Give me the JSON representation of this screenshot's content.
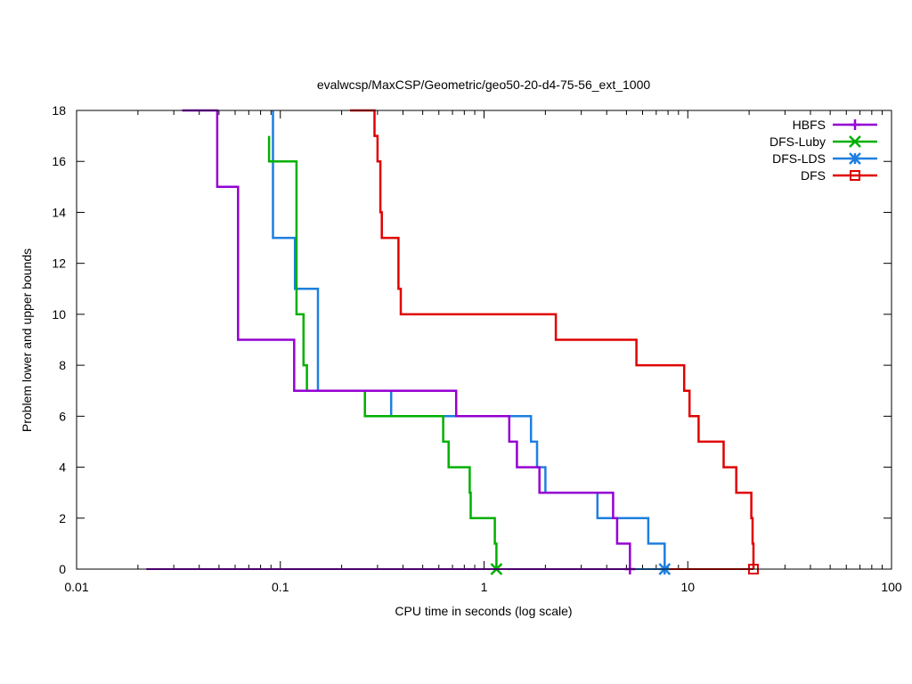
{
  "chart_data": {
    "type": "line",
    "title": "evalwcsp/MaxCSP/Geometric/geo50-20-d4-75-56_ext_1000",
    "xlabel": "CPU time in seconds (log scale)",
    "ylabel": "Problem lower and upper bounds",
    "xscale": "log",
    "xlim": [
      0.01,
      100
    ],
    "ylim": [
      0,
      18
    ],
    "x_ticks": [
      0.01,
      0.1,
      1,
      10,
      100
    ],
    "x_tick_labels": [
      "0.01",
      "0.1",
      "1",
      "10",
      "100"
    ],
    "y_ticks": [
      0,
      2,
      4,
      6,
      8,
      10,
      12,
      14,
      16,
      18
    ],
    "y_tick_labels": [
      "0",
      "2",
      "4",
      "6",
      "8",
      "10",
      "12",
      "14",
      "16",
      "18"
    ],
    "legend_position": "top-right",
    "series": [
      {
        "name": "HBFS",
        "color": "#9400d3",
        "marker": "plus",
        "upper": [
          [
            0.033,
            18
          ],
          [
            0.049,
            18
          ],
          [
            0.049,
            15
          ],
          [
            0.062,
            15
          ],
          [
            0.062,
            9
          ],
          [
            0.117,
            9
          ],
          [
            0.117,
            7
          ],
          [
            0.73,
            7
          ],
          [
            0.73,
            6
          ],
          [
            1.33,
            6
          ],
          [
            1.33,
            5
          ],
          [
            1.45,
            5
          ],
          [
            1.45,
            4
          ],
          [
            1.87,
            4
          ],
          [
            1.87,
            3
          ],
          [
            4.3,
            3
          ],
          [
            4.3,
            2
          ],
          [
            4.5,
            2
          ],
          [
            4.5,
            1
          ],
          [
            5.2,
            1
          ],
          [
            5.2,
            0
          ]
        ],
        "lower": [
          [
            0.022,
            0
          ],
          [
            5.2,
            0
          ]
        ]
      },
      {
        "name": "DFS-Luby",
        "color": "#00b000",
        "marker": "cross",
        "upper": [
          [
            0.088,
            17
          ],
          [
            0.088,
            16
          ],
          [
            0.12,
            16
          ],
          [
            0.12,
            10
          ],
          [
            0.13,
            10
          ],
          [
            0.13,
            8
          ],
          [
            0.135,
            8
          ],
          [
            0.135,
            7
          ],
          [
            0.26,
            7
          ],
          [
            0.26,
            6
          ],
          [
            0.63,
            6
          ],
          [
            0.63,
            5
          ],
          [
            0.67,
            5
          ],
          [
            0.67,
            4
          ],
          [
            0.85,
            4
          ],
          [
            0.85,
            3
          ],
          [
            0.86,
            3
          ],
          [
            0.86,
            2
          ],
          [
            1.13,
            2
          ],
          [
            1.13,
            1
          ],
          [
            1.15,
            1
          ],
          [
            1.15,
            0
          ]
        ],
        "lower": [
          [
            0.088,
            0
          ],
          [
            1.15,
            0
          ]
        ]
      },
      {
        "name": "DFS-LDS",
        "color": "#1e7fe0",
        "marker": "star",
        "upper": [
          [
            0.092,
            18
          ],
          [
            0.092,
            13
          ],
          [
            0.118,
            13
          ],
          [
            0.118,
            11
          ],
          [
            0.153,
            11
          ],
          [
            0.153,
            7
          ],
          [
            0.35,
            7
          ],
          [
            0.35,
            6
          ],
          [
            1.7,
            6
          ],
          [
            1.7,
            5
          ],
          [
            1.82,
            5
          ],
          [
            1.82,
            4
          ],
          [
            2.0,
            4
          ],
          [
            2.0,
            3
          ],
          [
            3.6,
            3
          ],
          [
            3.6,
            2
          ],
          [
            6.4,
            2
          ],
          [
            6.4,
            1
          ],
          [
            7.7,
            1
          ],
          [
            7.7,
            0
          ]
        ],
        "lower": [
          [
            0.092,
            0
          ],
          [
            7.7,
            0
          ]
        ]
      },
      {
        "name": "DFS",
        "color": "#e00000",
        "marker": "square",
        "upper": [
          [
            0.22,
            18
          ],
          [
            0.29,
            18
          ],
          [
            0.29,
            17
          ],
          [
            0.3,
            17
          ],
          [
            0.3,
            16
          ],
          [
            0.31,
            16
          ],
          [
            0.31,
            14
          ],
          [
            0.315,
            14
          ],
          [
            0.315,
            13
          ],
          [
            0.38,
            13
          ],
          [
            0.38,
            11
          ],
          [
            0.39,
            11
          ],
          [
            0.39,
            10
          ],
          [
            2.25,
            10
          ],
          [
            2.25,
            9
          ],
          [
            5.6,
            9
          ],
          [
            5.6,
            8
          ],
          [
            9.6,
            8
          ],
          [
            9.6,
            7
          ],
          [
            10.2,
            7
          ],
          [
            10.2,
            6
          ],
          [
            11.3,
            6
          ],
          [
            11.3,
            5
          ],
          [
            15.0,
            5
          ],
          [
            15.0,
            4
          ],
          [
            17.3,
            4
          ],
          [
            17.3,
            3
          ],
          [
            20.5,
            3
          ],
          [
            20.5,
            2
          ],
          [
            20.8,
            2
          ],
          [
            20.8,
            1
          ],
          [
            21.0,
            1
          ],
          [
            21.0,
            0
          ]
        ],
        "lower": [
          [
            0.22,
            0
          ],
          [
            21.0,
            0
          ]
        ]
      }
    ]
  }
}
